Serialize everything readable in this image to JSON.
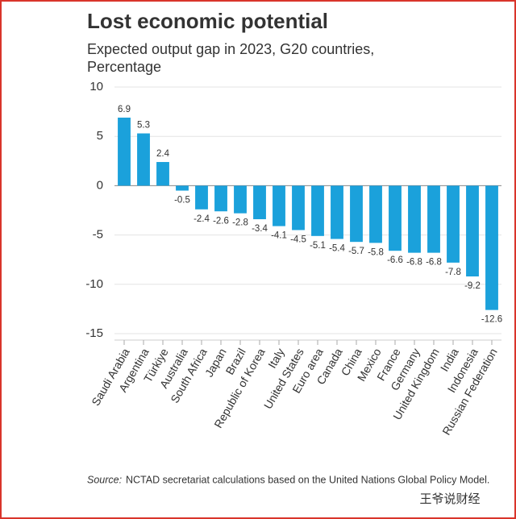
{
  "chart_data": {
    "type": "bar",
    "title": "Lost economic potential",
    "subtitle": [
      "Expected output gap in 2023, G20 countries,",
      "Percentage"
    ],
    "categories": [
      "Saudi Arabia",
      "Argentina",
      "Türkiye",
      "Australia",
      "South Africa",
      "Japan",
      "Brazil",
      "Republic of Korea",
      "Italy",
      "United States",
      "Euro area",
      "Canada",
      "China",
      "Mexico",
      "France",
      "Germany",
      "United Kingdom",
      "India",
      "Indonesia",
      "Russian Federation"
    ],
    "values": [
      6.9,
      5.3,
      2.4,
      -0.5,
      -2.4,
      -2.6,
      -2.8,
      -3.4,
      -4.1,
      -4.5,
      -5.1,
      -5.4,
      -5.7,
      -5.8,
      -6.6,
      -6.8,
      -6.8,
      -7.8,
      -9.2,
      -12.6
    ],
    "color": "#1ba1db",
    "ylim": [
      -15,
      10
    ],
    "yticks": [
      -15,
      -10,
      -5,
      0,
      5,
      10
    ],
    "grid": true,
    "source_label": "Source:",
    "source": "NCTAD secretariat calculations based on the United Nations Global Policy Model.",
    "watermark": "王爷说财经"
  }
}
